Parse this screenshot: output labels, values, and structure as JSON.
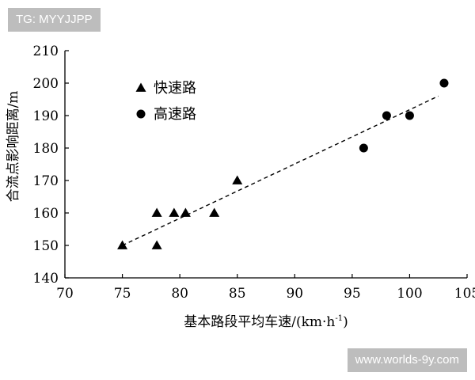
{
  "watermarks": {
    "top_left": "TG: MYYJJPP",
    "bottom_right": "www.worlds-9y.com"
  },
  "chart_data": {
    "type": "scatter",
    "title": "",
    "xlabel": "基本路段平均车速/(km·h",
    "xlabel_sup": "-1",
    "xlabel_tail": ")",
    "ylabel": "合流点影响距离/m",
    "xlim": [
      70,
      105
    ],
    "ylim": [
      140,
      210
    ],
    "xticks": [
      70,
      75,
      80,
      85,
      90,
      95,
      100,
      105
    ],
    "yticks": [
      140,
      150,
      160,
      170,
      180,
      190,
      200,
      210
    ],
    "grid": false,
    "legend_position": "top-left",
    "series": [
      {
        "name": "快速路",
        "marker": "triangle",
        "points": [
          [
            75,
            150
          ],
          [
            78,
            160
          ],
          [
            78,
            150
          ],
          [
            79.5,
            160
          ],
          [
            80.5,
            160
          ],
          [
            83,
            160
          ],
          [
            85,
            170
          ]
        ]
      },
      {
        "name": "高速路",
        "marker": "circle",
        "points": [
          [
            96,
            180
          ],
          [
            98,
            190
          ],
          [
            100,
            190
          ],
          [
            103,
            200
          ]
        ]
      }
    ],
    "trendline": {
      "style": "dashed",
      "from": [
        75,
        150
      ],
      "to": [
        102.5,
        196
      ]
    },
    "colors": {
      "marker": "#000000",
      "axis": "#000000"
    }
  }
}
